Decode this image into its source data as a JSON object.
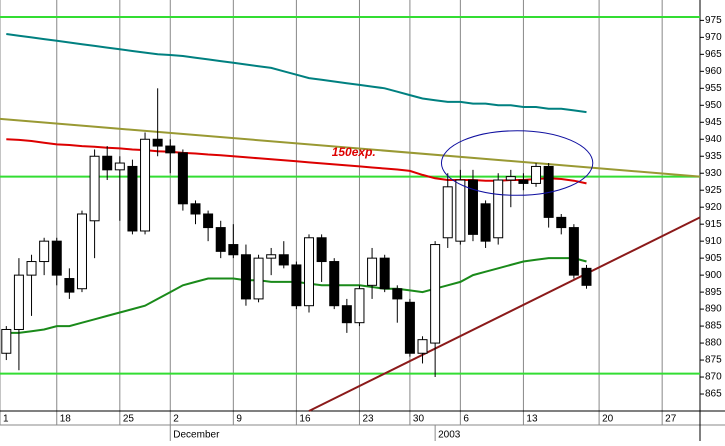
{
  "chart_data": {
    "type": "candlestick",
    "xlim": [
      -0.5,
      55
    ],
    "ylim": [
      860,
      981
    ],
    "yticks": [
      975,
      970,
      965,
      960,
      955,
      950,
      945,
      940,
      935,
      930,
      925,
      920,
      915,
      910,
      905,
      900,
      895,
      890,
      885,
      880,
      875,
      870,
      865
    ],
    "xticks": [
      {
        "value": -0.5,
        "label": "1"
      },
      {
        "value": 4,
        "label": "18"
      },
      {
        "value": 9,
        "label": "25"
      },
      {
        "value": 13,
        "label": "2"
      },
      {
        "value": 18,
        "label": "9"
      },
      {
        "value": 23,
        "label": "16"
      },
      {
        "value": 28,
        "label": "23"
      },
      {
        "value": 32,
        "label": "30"
      },
      {
        "value": 36,
        "label": "6"
      },
      {
        "value": 41,
        "label": "13"
      },
      {
        "value": 47,
        "label": "20"
      },
      {
        "value": 52,
        "label": "27"
      }
    ],
    "xticks2": [
      {
        "value": 13,
        "label": "December"
      },
      {
        "value": 34,
        "label": "2003"
      }
    ],
    "up_color": "#ffffff",
    "down_color": "#000000",
    "open": [
      877,
      884,
      900,
      904,
      910,
      899,
      896,
      916,
      935,
      931,
      932,
      913,
      940,
      938,
      936,
      921,
      918,
      914,
      909,
      906,
      893,
      905,
      906,
      903,
      891,
      911,
      904,
      891,
      886,
      897,
      905,
      896,
      892,
      877,
      880,
      911,
      910,
      928,
      921,
      911,
      928,
      928,
      927,
      932,
      917,
      914,
      902
    ],
    "high": [
      885,
      905,
      906,
      911,
      911,
      902,
      919,
      937,
      938,
      935,
      934,
      942,
      955,
      940,
      937,
      922,
      919,
      916,
      915,
      909,
      906,
      908,
      910,
      904,
      912,
      912,
      905,
      893,
      897,
      908,
      906,
      897,
      893,
      882,
      910,
      930,
      931,
      931,
      922,
      930,
      931,
      930,
      933,
      933,
      918,
      915,
      903
    ],
    "low": [
      875,
      872,
      888,
      900,
      897,
      893,
      895,
      905,
      928,
      916,
      912,
      912,
      935,
      930,
      919,
      915,
      910,
      905,
      905,
      891,
      892,
      900,
      902,
      890,
      889,
      898,
      890,
      883,
      885,
      893,
      895,
      886,
      876,
      874,
      870,
      908,
      909,
      910,
      908,
      909,
      920,
      925,
      926,
      914,
      912,
      899,
      896
    ],
    "close": [
      884,
      900,
      904,
      910,
      900,
      895,
      918,
      935,
      931,
      933,
      913,
      940,
      938,
      936,
      921,
      918,
      914,
      907,
      906,
      893,
      905,
      906,
      903,
      891,
      911,
      904,
      891,
      886,
      896,
      905,
      896,
      893,
      877,
      881,
      909,
      926,
      928,
      912,
      910,
      928,
      929,
      927,
      932,
      917,
      914,
      900,
      897
    ],
    "series": [
      {
        "color": "#008080",
        "values": [
          971,
          970.5,
          970,
          969.5,
          969,
          968.5,
          968,
          967.5,
          967,
          966.5,
          966,
          965.5,
          965,
          964.8,
          964.5,
          964,
          963.5,
          963,
          962.5,
          962,
          961.5,
          961,
          960,
          959,
          958,
          957.5,
          957,
          956.5,
          956,
          955.5,
          955,
          954,
          953,
          952,
          951.5,
          951,
          951,
          950.5,
          950.5,
          950,
          950,
          949.5,
          949.5,
          949,
          949,
          948.5,
          948
        ]
      },
      {
        "color": "#dd0000",
        "values": [
          940,
          939.8,
          939.5,
          939,
          938.5,
          938.3,
          938,
          937.8,
          937.5,
          937.3,
          937,
          936.8,
          936.5,
          936.3,
          936,
          935.8,
          935.5,
          935.3,
          935,
          934.7,
          934.4,
          934.1,
          933.8,
          933.5,
          933.2,
          932.9,
          932.6,
          932.3,
          932,
          931.7,
          931.4,
          931.1,
          930.7,
          929.5,
          928.5,
          928,
          928,
          928,
          927.8,
          927.8,
          928,
          928,
          928.3,
          928.5,
          928.3,
          927.8,
          927
        ]
      },
      {
        "color": "#1a8a1a",
        "values": [
          883,
          883,
          883.5,
          884,
          885,
          885,
          886,
          887,
          888,
          889,
          890,
          891,
          893,
          895,
          897,
          898,
          899,
          899,
          899,
          898.5,
          898.5,
          898,
          898,
          898,
          897.5,
          897,
          897,
          897,
          897,
          896.5,
          896,
          896,
          895.5,
          895,
          896,
          897,
          898,
          900,
          901,
          902,
          903,
          904,
          904.5,
          905,
          905,
          905,
          904
        ]
      }
    ],
    "hlines": {
      "color": "#33dd33",
      "values": [
        976,
        929,
        871
      ]
    },
    "trendlines": [
      {
        "color": "#999933",
        "x": [
          -0.5,
          55
        ],
        "y": [
          946,
          929
        ]
      },
      {
        "color": "#8b1a1a",
        "x": [
          24,
          55
        ],
        "y": [
          860,
          917
        ]
      }
    ],
    "ellipse": {
      "color": "#1010a0",
      "x": [
        34.5,
        46.5
      ],
      "y": [
        923.5,
        942.5
      ]
    },
    "annotation": {
      "text": "150exp.",
      "color": "#dd0000",
      "x": 25.8,
      "y": 936
    }
  }
}
